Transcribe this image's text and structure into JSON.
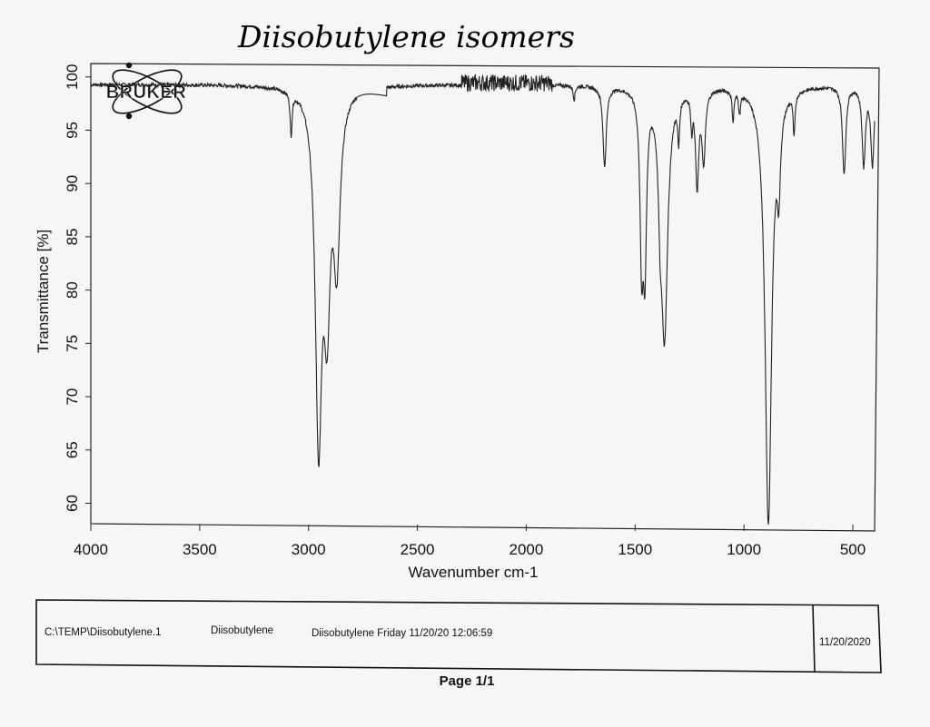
{
  "handwritten_title": "Diisobutylene isomers",
  "logo": {
    "brand": "BRUKER"
  },
  "chart_data": {
    "type": "line",
    "xlabel": "Wavenumber cm-1",
    "ylabel": "Transmittance [%]",
    "xlim": [
      4000,
      400
    ],
    "ylim": [
      58,
      101
    ],
    "x_ticks": [
      4000,
      3500,
      3000,
      2500,
      2000,
      1500,
      1000,
      500
    ],
    "y_ticks": [
      60,
      65,
      70,
      75,
      80,
      85,
      90,
      95,
      100
    ],
    "grid": false,
    "legend": "none",
    "series": [
      {
        "color": "#222222",
        "baseline": 99.3,
        "peaks": [
          {
            "x": 3080,
            "y": 95.2
          },
          {
            "x": 2954,
            "y": 67.4
          },
          {
            "x": 2915,
            "y": 81.0
          },
          {
            "x": 2870,
            "y": 84.2
          },
          {
            "x": 1780,
            "y": 98.0
          },
          {
            "x": 1640,
            "y": 91.7
          },
          {
            "x": 1470,
            "y": 84.4
          },
          {
            "x": 1455,
            "y": 84.4
          },
          {
            "x": 1385,
            "y": 92.6
          },
          {
            "x": 1365,
            "y": 76.4
          },
          {
            "x": 1300,
            "y": 95.3
          },
          {
            "x": 1240,
            "y": 96.2
          },
          {
            "x": 1215,
            "y": 90.3
          },
          {
            "x": 1185,
            "y": 92.6
          },
          {
            "x": 1050,
            "y": 96.5
          },
          {
            "x": 1020,
            "y": 97.4
          },
          {
            "x": 888,
            "y": 58.2
          },
          {
            "x": 840,
            "y": 92.2
          },
          {
            "x": 770,
            "y": 95.4
          },
          {
            "x": 540,
            "y": 91.0
          },
          {
            "x": 450,
            "y": 92.0
          },
          {
            "x": 410,
            "y": 92.0
          }
        ]
      }
    ]
  },
  "footer": {
    "file_path": "C:\\TEMP\\Diisobutylene.1",
    "sample_name": "Diisobutylene",
    "description": "Diisobutylene  Friday 11/20/20 12:06:59",
    "date": "11/20/2020"
  },
  "page_label": "Page 1/1"
}
